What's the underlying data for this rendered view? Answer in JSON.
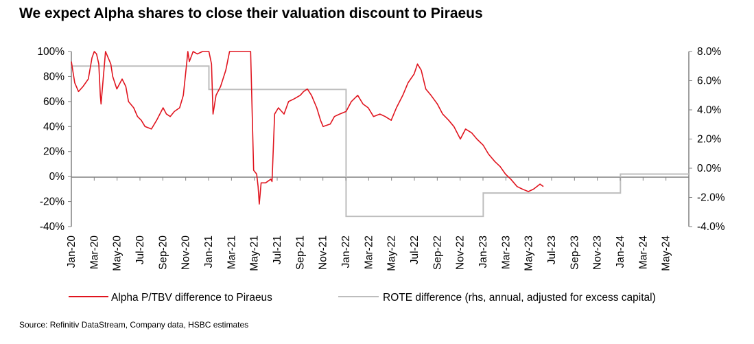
{
  "title": "We expect Alpha shares to close their valuation discount to Piraeus",
  "source": "Source: Refinitiv DataStream, Company data, HSBC estimates",
  "colors": {
    "red": "#e0141e",
    "grey": "#bdbdbd",
    "axis": "#808080"
  },
  "chart_data": {
    "type": "line",
    "title": "We expect Alpha shares to close their valuation discount to Piraeus",
    "x_tick_labels": [
      "Jan-20",
      "Mar-20",
      "May-20",
      "Jul-20",
      "Sep-20",
      "Nov-20",
      "Jan-21",
      "Mar-21",
      "May-21",
      "Jul-21",
      "Sep-21",
      "Nov-21",
      "Jan-22",
      "Mar-22",
      "May-22",
      "Jul-22",
      "Sep-22",
      "Nov-22",
      "Jan-23",
      "Mar-23",
      "May-23",
      "Jul-23",
      "Sep-23",
      "Nov-23",
      "Jan-24",
      "Mar-24",
      "May-24"
    ],
    "xlim": [
      "2020-01-01",
      "2024-07-01"
    ],
    "y_left": {
      "ticks": [
        100,
        80,
        60,
        40,
        20,
        0,
        -20,
        -40
      ],
      "tick_labels": [
        "100%",
        "80%",
        "60%",
        "40%",
        "20%",
        "0%",
        "-20%",
        "-40%"
      ],
      "lim": [
        -40,
        100
      ]
    },
    "y_right": {
      "ticks": [
        8,
        6,
        4,
        2,
        0,
        -2,
        -4
      ],
      "tick_labels": [
        "8.0%",
        "6.0%",
        "4.0%",
        "2.0%",
        "0.0%",
        "-2.0%",
        "-4.0%"
      ],
      "lim": [
        -4,
        8
      ]
    },
    "grid": false,
    "legend_position": "bottom",
    "series": [
      {
        "name": "Alpha P/TBV difference to Piraeus",
        "axis": "left",
        "style": "line",
        "x": [
          "2020-01-01",
          "2020-01-10",
          "2020-01-20",
          "2020-02-01",
          "2020-02-15",
          "2020-02-25",
          "2020-03-02",
          "2020-03-08",
          "2020-03-14",
          "2020-03-18",
          "2020-03-20",
          "2020-04-01",
          "2020-04-15",
          "2020-04-20",
          "2020-05-01",
          "2020-05-15",
          "2020-05-25",
          "2020-06-01",
          "2020-06-15",
          "2020-06-25",
          "2020-07-05",
          "2020-07-15",
          "2020-08-01",
          "2020-08-15",
          "2020-09-01",
          "2020-09-10",
          "2020-09-20",
          "2020-10-01",
          "2020-10-15",
          "2020-10-25",
          "2020-11-02",
          "2020-11-06",
          "2020-11-10",
          "2020-11-20",
          "2020-12-01",
          "2020-12-15",
          "2021-01-01",
          "2021-01-08",
          "2021-01-12",
          "2021-01-20",
          "2021-02-01",
          "2021-02-15",
          "2021-02-25",
          "2021-03-05",
          "2021-03-10",
          "2021-04-22",
          "2021-04-30",
          "2021-05-08",
          "2021-05-12",
          "2021-05-15",
          "2021-05-20",
          "2021-06-01",
          "2021-06-15",
          "2021-06-18",
          "2021-06-25",
          "2021-07-05",
          "2021-07-20",
          "2021-08-01",
          "2021-08-15",
          "2021-09-01",
          "2021-09-10",
          "2021-09-20",
          "2021-10-01",
          "2021-10-15",
          "2021-10-25",
          "2021-11-01",
          "2021-11-20",
          "2021-12-01",
          "2021-12-15",
          "2022-01-01",
          "2022-01-15",
          "2022-02-01",
          "2022-02-15",
          "2022-03-01",
          "2022-03-15",
          "2022-04-01",
          "2022-04-15",
          "2022-05-01",
          "2022-05-15",
          "2022-06-01",
          "2022-06-15",
          "2022-07-01",
          "2022-07-10",
          "2022-07-20",
          "2022-08-01",
          "2022-08-15",
          "2022-09-01",
          "2022-09-15",
          "2022-10-01",
          "2022-10-15",
          "2022-11-01",
          "2022-11-15",
          "2022-12-01",
          "2022-12-15",
          "2023-01-01",
          "2023-01-15",
          "2023-02-01",
          "2023-02-15",
          "2023-03-01",
          "2023-03-15",
          "2023-04-01",
          "2023-04-15",
          "2023-05-01",
          "2023-05-15",
          "2023-06-01",
          "2023-06-10"
        ],
        "y": [
          92,
          75,
          68,
          72,
          78,
          95,
          100,
          98,
          90,
          65,
          58,
          100,
          90,
          80,
          70,
          78,
          72,
          60,
          55,
          48,
          45,
          40,
          38,
          45,
          55,
          50,
          48,
          52,
          55,
          65,
          88,
          100,
          92,
          100,
          98,
          100,
          100,
          90,
          50,
          65,
          72,
          85,
          100,
          100,
          100,
          100,
          5,
          2,
          -8,
          -22,
          -5,
          -5,
          -2,
          -4,
          50,
          55,
          50,
          60,
          62,
          65,
          68,
          70,
          65,
          55,
          45,
          40,
          42,
          48,
          50,
          52,
          60,
          65,
          58,
          55,
          48,
          50,
          48,
          45,
          55,
          65,
          75,
          82,
          90,
          85,
          70,
          65,
          58,
          50,
          45,
          40,
          30,
          38,
          35,
          30,
          25,
          18,
          12,
          8,
          2,
          -2,
          -8,
          -10,
          -12,
          -10,
          -6,
          -8
        ]
      },
      {
        "name": "ROTE difference (rhs, annual, adjusted for excess capital)",
        "axis": "right",
        "style": "step",
        "x": [
          "2020-01-01",
          "2021-01-01",
          "2022-01-01",
          "2023-01-01",
          "2024-01-01",
          "2024-07-01"
        ],
        "y": [
          7.0,
          5.4,
          -3.3,
          -1.7,
          -0.4,
          -0.4
        ]
      }
    ]
  }
}
